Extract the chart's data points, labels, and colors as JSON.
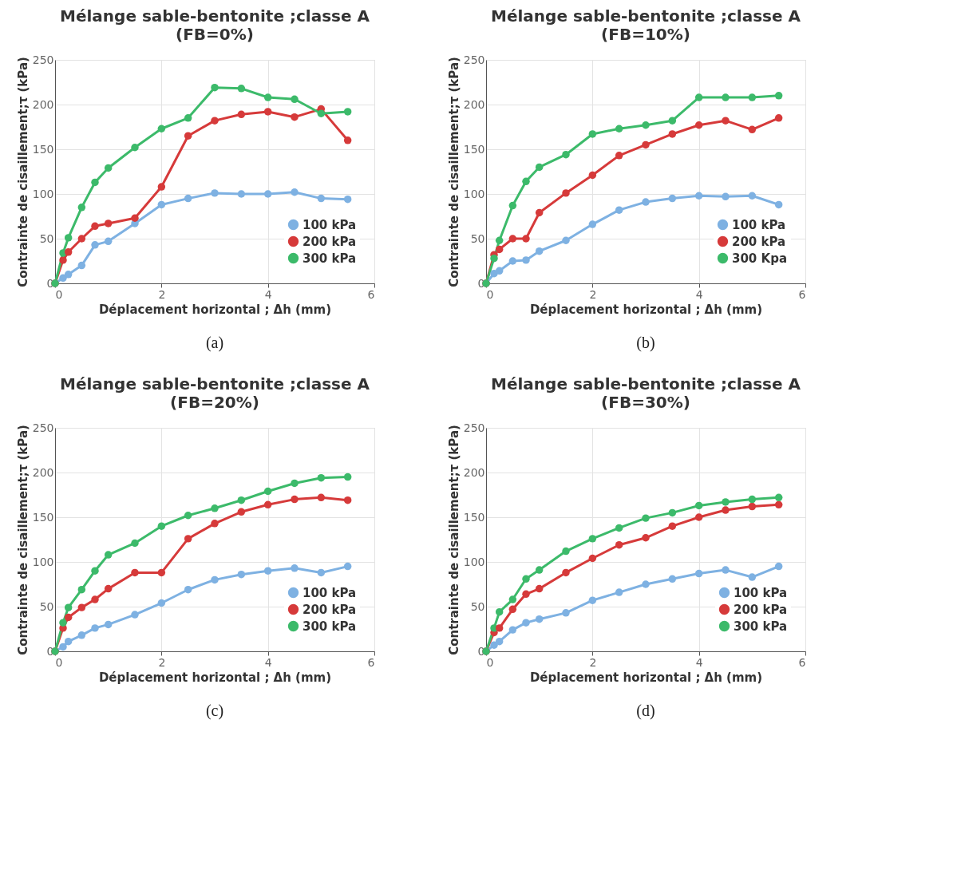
{
  "chart_data": [
    {
      "type": "line",
      "title": "Mélange sable-bentonite ;classe A",
      "subtitle": "(FB=0%)",
      "xlabel": "Déplacement horizontal ; Δh (mm)",
      "ylabel": "Contrainte de cisaillement;τ (kPa)",
      "annotations": [
        "(a)"
      ],
      "x": [
        0,
        0.15,
        0.25,
        0.5,
        0.75,
        1,
        1.5,
        2,
        2.5,
        3,
        3.5,
        4,
        4.5,
        5,
        5.5
      ],
      "xlim": [
        0,
        6
      ],
      "xticks": [
        0,
        2,
        4,
        6
      ],
      "ylim": [
        0,
        250
      ],
      "yticks": [
        0,
        50,
        100,
        150,
        200,
        250
      ],
      "grid": true,
      "legend": "bottom right",
      "marker": "circle",
      "series": [
        {
          "name": "100 kPa",
          "color": "#7eb1e2",
          "values": [
            0,
            6,
            10,
            20,
            43,
            47,
            67,
            88,
            95,
            101,
            100,
            100,
            102,
            95,
            94
          ]
        },
        {
          "name": "200 kPa",
          "color": "#d63a3a",
          "values": [
            0,
            26,
            35,
            50,
            64,
            67,
            73,
            108,
            165,
            182,
            189,
            192,
            186,
            195,
            160
          ]
        },
        {
          "name": "300 kPa",
          "color": "#3cba6a",
          "values": [
            0,
            34,
            51,
            85,
            113,
            129,
            152,
            173,
            185,
            219,
            218,
            208,
            206,
            190,
            192
          ]
        }
      ]
    },
    {
      "type": "line",
      "title": "Mélange sable-bentonite ;classe A",
      "subtitle": "(FB=10%)",
      "xlabel": "Déplacement horizontal ; Δh (mm)",
      "ylabel": "Contrainte de cisaillement;τ (kPa)",
      "annotations": [
        "(b)"
      ],
      "x": [
        0,
        0.15,
        0.25,
        0.5,
        0.75,
        1,
        1.5,
        2,
        2.5,
        3,
        3.5,
        4,
        4.5,
        5,
        5.5
      ],
      "xlim": [
        0,
        6
      ],
      "xticks": [
        0,
        2,
        4,
        6
      ],
      "ylim": [
        0,
        250
      ],
      "yticks": [
        0,
        50,
        100,
        150,
        200,
        250
      ],
      "grid": true,
      "legend": "bottom right",
      "marker": "circle",
      "series": [
        {
          "name": "100 kPa",
          "color": "#7eb1e2",
          "values": [
            0,
            11,
            14,
            25,
            26,
            36,
            48,
            66,
            82,
            91,
            95,
            98,
            97,
            98,
            88
          ]
        },
        {
          "name": "200 kPa",
          "color": "#d63a3a",
          "values": [
            0,
            32,
            38,
            50,
            50,
            79,
            101,
            121,
            143,
            155,
            167,
            177,
            182,
            172,
            185
          ]
        },
        {
          "name": "300 Kpa",
          "color": "#3cba6a",
          "values": [
            0,
            28,
            48,
            87,
            114,
            130,
            144,
            167,
            173,
            177,
            182,
            208,
            208,
            208,
            210
          ]
        }
      ]
    },
    {
      "type": "line",
      "title": "Mélange sable-bentonite ;classe A",
      "subtitle": "(FB=20%)",
      "xlabel": "Déplacement horizontal ; Δh (mm)",
      "ylabel": "Contrainte de cisaillement;τ (kPa)",
      "annotations": [
        "(c)"
      ],
      "x": [
        0,
        0.15,
        0.25,
        0.5,
        0.75,
        1,
        1.5,
        2,
        2.5,
        3,
        3.5,
        4,
        4.5,
        5,
        5.5
      ],
      "xlim": [
        0,
        6
      ],
      "xticks": [
        0,
        2,
        4,
        6
      ],
      "ylim": [
        0,
        250
      ],
      "yticks": [
        0,
        50,
        100,
        150,
        200,
        250
      ],
      "grid": true,
      "legend": "bottom right",
      "marker": "circle",
      "series": [
        {
          "name": "100 kPa",
          "color": "#7eb1e2",
          "values": [
            0,
            5,
            11,
            18,
            26,
            30,
            41,
            54,
            69,
            80,
            86,
            90,
            93,
            88,
            95
          ]
        },
        {
          "name": "200 kPa",
          "color": "#d63a3a",
          "values": [
            0,
            26,
            38,
            49,
            58,
            70,
            88,
            88,
            126,
            143,
            156,
            164,
            170,
            172,
            169
          ]
        },
        {
          "name": "300 kPa",
          "color": "#3cba6a",
          "values": [
            0,
            32,
            49,
            69,
            90,
            108,
            121,
            140,
            152,
            160,
            169,
            179,
            188,
            194,
            195
          ]
        }
      ]
    },
    {
      "type": "line",
      "title": "Mélange sable-bentonite ;classe A",
      "subtitle": "(FB=30%)",
      "xlabel": "Déplacement horizontal ; Δh (mm)",
      "ylabel": "Contrainte de cisaillement;τ (kPa)",
      "annotations": [
        "(d)"
      ],
      "x": [
        0,
        0.15,
        0.25,
        0.5,
        0.75,
        1,
        1.5,
        2,
        2.5,
        3,
        3.5,
        4,
        4.5,
        5,
        5.5
      ],
      "xlim": [
        0,
        6
      ],
      "xticks": [
        0,
        2,
        4,
        6
      ],
      "ylim": [
        0,
        250
      ],
      "yticks": [
        0,
        50,
        100,
        150,
        200,
        250
      ],
      "grid": true,
      "legend": "bottom right",
      "marker": "circle",
      "series": [
        {
          "name": "100 kPa",
          "color": "#7eb1e2",
          "values": [
            0,
            7,
            11,
            24,
            32,
            36,
            43,
            57,
            66,
            75,
            81,
            87,
            91,
            83,
            95
          ]
        },
        {
          "name": "200 kPa",
          "color": "#d63a3a",
          "values": [
            0,
            21,
            26,
            47,
            64,
            70,
            88,
            104,
            119,
            127,
            140,
            150,
            158,
            162,
            164
          ]
        },
        {
          "name": "300 kPa",
          "color": "#3cba6a",
          "values": [
            0,
            26,
            44,
            58,
            81,
            91,
            112,
            126,
            138,
            149,
            155,
            163,
            167,
            170,
            172
          ]
        }
      ]
    }
  ]
}
